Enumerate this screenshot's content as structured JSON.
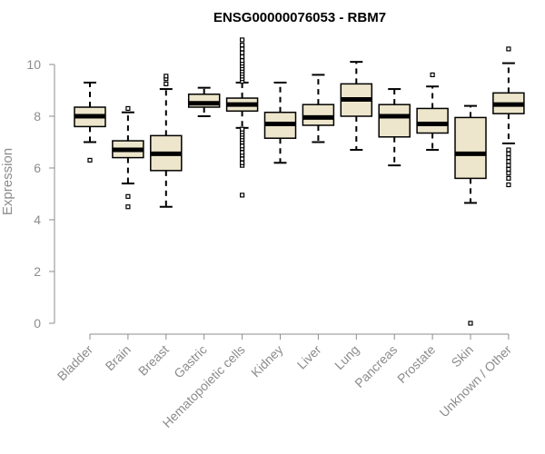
{
  "chart_data": {
    "type": "box",
    "title": "ENSG00000076053 - RBM7",
    "xlabel": "",
    "ylabel": "Expression",
    "ylim": [
      0,
      11
    ],
    "yticks": [
      0,
      2,
      4,
      6,
      8,
      10
    ],
    "grid": false,
    "legend": "none",
    "box_fill": "#ede6cc",
    "categories": [
      "Bladder",
      "Brain",
      "Breast",
      "Gastric",
      "Hematopoietic cells",
      "Kidney",
      "Liver",
      "Lung",
      "Pancreas",
      "Prostate",
      "Skin",
      "Unknown / Other"
    ],
    "boxes": [
      {
        "category": "Bladder",
        "whisker_low": 7.0,
        "q1": 7.6,
        "median": 8.0,
        "q3": 8.35,
        "whisker_high": 9.3,
        "outliers": [
          6.3
        ]
      },
      {
        "category": "Brain",
        "whisker_low": 5.4,
        "q1": 6.4,
        "median": 6.7,
        "q3": 7.05,
        "whisker_high": 8.15,
        "outliers": [
          4.5,
          4.9,
          8.3
        ]
      },
      {
        "category": "Breast",
        "whisker_low": 4.5,
        "q1": 5.9,
        "median": 6.55,
        "q3": 7.25,
        "whisker_high": 9.05,
        "outliers": [
          9.25,
          9.45,
          9.55
        ]
      },
      {
        "category": "Gastric",
        "whisker_low": 8.0,
        "q1": 8.35,
        "median": 8.5,
        "q3": 8.85,
        "whisker_high": 9.1,
        "outliers": []
      },
      {
        "category": "Hematopoietic cells",
        "whisker_low": 7.55,
        "q1": 8.2,
        "median": 8.45,
        "q3": 8.7,
        "whisker_high": 9.3,
        "outliers": [
          4.95,
          6.1,
          6.2,
          6.35,
          6.5,
          6.6,
          6.75,
          6.85,
          7.0,
          7.1,
          7.2,
          7.3,
          7.4,
          7.5,
          9.35,
          9.45,
          9.55,
          9.65,
          9.75,
          9.85,
          9.95,
          10.05,
          10.15,
          10.3,
          10.45,
          10.6,
          10.75,
          10.95
        ]
      },
      {
        "category": "Kidney",
        "whisker_low": 6.2,
        "q1": 7.15,
        "median": 7.7,
        "q3": 8.15,
        "whisker_high": 9.3,
        "outliers": []
      },
      {
        "category": "Liver",
        "whisker_low": 7.0,
        "q1": 7.65,
        "median": 7.95,
        "q3": 8.45,
        "whisker_high": 9.6,
        "outliers": []
      },
      {
        "category": "Lung",
        "whisker_low": 6.7,
        "q1": 8.0,
        "median": 8.65,
        "q3": 9.25,
        "whisker_high": 10.1,
        "outliers": []
      },
      {
        "category": "Pancreas",
        "whisker_low": 6.1,
        "q1": 7.2,
        "median": 8.0,
        "q3": 8.45,
        "whisker_high": 9.05,
        "outliers": []
      },
      {
        "category": "Prostate",
        "whisker_low": 6.7,
        "q1": 7.35,
        "median": 7.7,
        "q3": 8.3,
        "whisker_high": 9.15,
        "outliers": [
          9.6
        ]
      },
      {
        "category": "Skin",
        "whisker_low": 4.65,
        "q1": 5.6,
        "median": 6.55,
        "q3": 7.95,
        "whisker_high": 8.4,
        "outliers": [
          0.0
        ]
      },
      {
        "category": "Unknown / Other",
        "whisker_low": 6.95,
        "q1": 8.1,
        "median": 8.45,
        "q3": 8.9,
        "whisker_high": 10.05,
        "outliers": [
          5.35,
          5.6,
          5.8,
          5.95,
          6.1,
          6.25,
          6.4,
          6.55,
          6.7,
          10.6
        ]
      }
    ]
  }
}
